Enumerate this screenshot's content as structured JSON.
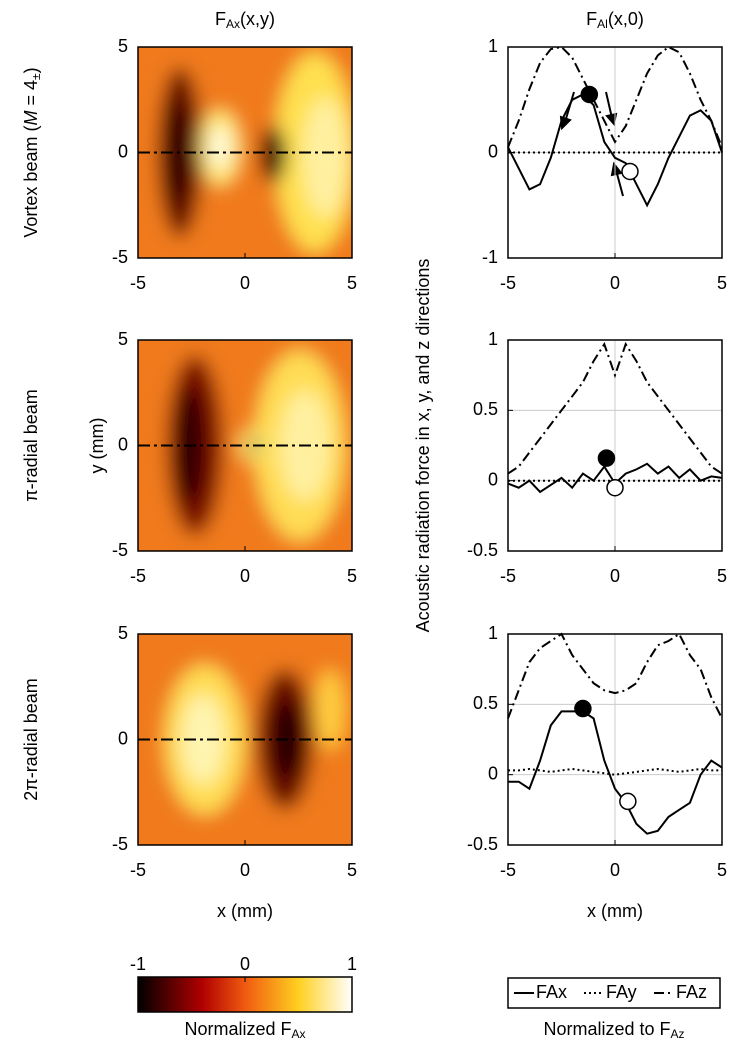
{
  "figure": {
    "column_titles": [
      {
        "text": "F",
        "sub": "Ax",
        "after": "(x,y)"
      },
      {
        "text": "F",
        "sub": "Al",
        "after": "(x,0)"
      }
    ],
    "row_labels": [
      {
        "text": "Vortex beam (",
        "italic": "M",
        "mid": " = 4",
        "sub": "±",
        "after": ")"
      },
      {
        "text": "π-radial beam"
      },
      {
        "text": "2π-radial beam"
      }
    ],
    "y_label_left": "y (mm)",
    "y_label_right": "Acoustic radiation force in x, y, and z directions",
    "colorbar": {
      "ticks": [
        -1,
        0,
        1
      ],
      "lim": [
        -1,
        1
      ],
      "label": "Normalized F",
      "label_sub": "Ax"
    },
    "legend_label": "Normalized to F",
    "legend_label_sub": "Az"
  },
  "chart_data": [
    {
      "type": "heatmap",
      "pattern": "vortex",
      "xlim": [
        -5,
        5
      ],
      "ylim": [
        -5,
        5
      ],
      "xticks": [
        -5,
        0,
        5
      ],
      "yticks": [
        -5,
        0,
        5
      ]
    },
    {
      "type": "line",
      "xlim": [
        -5,
        5
      ],
      "ylim": [
        -1,
        1
      ],
      "xticks": [
        -5,
        0,
        5
      ],
      "yticks": [
        -1,
        0,
        1
      ],
      "grid": true,
      "x": [
        -5,
        -4.5,
        -4,
        -3.5,
        -3,
        -2.5,
        -2,
        -1.5,
        -1,
        -0.5,
        0,
        0.5,
        1,
        1.5,
        2,
        2.5,
        3,
        3.5,
        4,
        4.5,
        5
      ],
      "series": [
        {
          "name": "FAx",
          "color": "#000000",
          "linestyle": "solid",
          "values": [
            0.05,
            -0.15,
            -0.35,
            -0.3,
            -0.05,
            0.3,
            0.5,
            0.55,
            0.45,
            0.1,
            -0.05,
            -0.1,
            -0.3,
            -0.5,
            -0.3,
            -0.05,
            0.15,
            0.35,
            0.4,
            0.3,
            0.0
          ]
        },
        {
          "name": "FAy",
          "color": "#000000",
          "linestyle": "dotted",
          "values": [
            0,
            0,
            0,
            0,
            0,
            0,
            0,
            0,
            0,
            0,
            0,
            0,
            0,
            0,
            0,
            0,
            0,
            0,
            0,
            0,
            0
          ]
        },
        {
          "name": "FAz",
          "color": "#000000",
          "linestyle": "dashdot",
          "values": [
            0.05,
            0.3,
            0.6,
            0.85,
            0.98,
            1,
            0.9,
            0.7,
            0.5,
            0.3,
            0.1,
            0.25,
            0.5,
            0.75,
            0.92,
            1,
            0.95,
            0.75,
            0.5,
            0.3,
            0.05
          ]
        }
      ],
      "markers": [
        {
          "x": -1.2,
          "y": 0.55,
          "filled": true
        },
        {
          "x": 0.7,
          "y": -0.18,
          "filled": false
        }
      ]
    },
    {
      "type": "heatmap",
      "pattern": "pi",
      "xlim": [
        -5,
        5
      ],
      "ylim": [
        -5,
        5
      ],
      "xticks": [
        -5,
        0,
        5
      ],
      "yticks": [
        -5,
        0,
        5
      ]
    },
    {
      "type": "line",
      "xlim": [
        -5,
        5
      ],
      "ylim": [
        -0.5,
        1
      ],
      "xticks": [
        -5,
        0,
        5
      ],
      "yticks": [
        -0.5,
        0,
        0.5,
        1
      ],
      "grid": true,
      "x": [
        -5,
        -4.5,
        -4,
        -3.5,
        -3,
        -2.5,
        -2,
        -1.5,
        -1,
        -0.5,
        0,
        0.5,
        1,
        1.5,
        2,
        2.5,
        3,
        3.5,
        4,
        4.5,
        5
      ],
      "series": [
        {
          "name": "FAx",
          "color": "#000000",
          "linestyle": "solid",
          "values": [
            -0.02,
            -0.05,
            0.0,
            -0.08,
            -0.03,
            0.02,
            -0.05,
            0.05,
            0.0,
            0.1,
            -0.02,
            0.05,
            0.08,
            0.12,
            0.05,
            0.1,
            0.02,
            0.08,
            0.0,
            0.03,
            0.02
          ]
        },
        {
          "name": "FAy",
          "color": "#000000",
          "linestyle": "dotted",
          "values": [
            0,
            0,
            0,
            0,
            0,
            0,
            0,
            0,
            0,
            0,
            0,
            0,
            0,
            0,
            0,
            0,
            0,
            0,
            0,
            0,
            0
          ]
        },
        {
          "name": "FAz",
          "color": "#000000",
          "linestyle": "dashdot",
          "values": [
            0.05,
            0.1,
            0.2,
            0.3,
            0.4,
            0.5,
            0.6,
            0.7,
            0.85,
            0.97,
            0.75,
            0.97,
            0.85,
            0.7,
            0.6,
            0.5,
            0.4,
            0.3,
            0.2,
            0.1,
            0.05
          ]
        }
      ],
      "markers": [
        {
          "x": -0.4,
          "y": 0.16,
          "filled": true
        },
        {
          "x": 0,
          "y": -0.05,
          "filled": false
        }
      ]
    },
    {
      "type": "heatmap",
      "pattern": "twopi",
      "xlim": [
        -5,
        5
      ],
      "ylim": [
        -5,
        5
      ],
      "xticks": [
        -5,
        0,
        5
      ],
      "yticks": [
        -5,
        0,
        5
      ]
    },
    {
      "type": "line",
      "xlim": [
        -5,
        5
      ],
      "ylim": [
        -0.5,
        1
      ],
      "xticks": [
        -5,
        0,
        5
      ],
      "yticks": [
        -0.5,
        0,
        0.5,
        1
      ],
      "grid": true,
      "x": [
        -5,
        -4.5,
        -4,
        -3.5,
        -3,
        -2.5,
        -2,
        -1.5,
        -1,
        -0.5,
        0,
        0.5,
        1,
        1.5,
        2,
        2.5,
        3,
        3.5,
        4,
        4.5,
        5
      ],
      "series": [
        {
          "name": "FAx",
          "color": "#000000",
          "linestyle": "solid",
          "values": [
            -0.05,
            -0.05,
            -0.1,
            0.1,
            0.35,
            0.45,
            0.45,
            0.45,
            0.4,
            0.1,
            -0.1,
            -0.2,
            -0.35,
            -0.42,
            -0.4,
            -0.3,
            -0.25,
            -0.2,
            0.0,
            0.1,
            0.05
          ]
        },
        {
          "name": "FAy",
          "color": "#000000",
          "linestyle": "dotted",
          "values": [
            0.03,
            0.03,
            0.04,
            0.03,
            0.02,
            0.03,
            0.04,
            0.03,
            0.02,
            0.01,
            0.0,
            0.01,
            0.02,
            0.03,
            0.04,
            0.03,
            0.02,
            0.03,
            0.04,
            0.03,
            0.03
          ]
        },
        {
          "name": "FAz",
          "color": "#000000",
          "linestyle": "dashdot",
          "values": [
            0.4,
            0.6,
            0.8,
            0.9,
            0.95,
            1,
            0.85,
            0.75,
            0.65,
            0.6,
            0.58,
            0.6,
            0.65,
            0.8,
            0.92,
            0.95,
            1,
            0.85,
            0.75,
            0.55,
            0.4
          ]
        }
      ],
      "markers": [
        {
          "x": -1.5,
          "y": 0.47,
          "filled": true
        },
        {
          "x": 0.6,
          "y": -0.19,
          "filled": false
        }
      ]
    }
  ]
}
